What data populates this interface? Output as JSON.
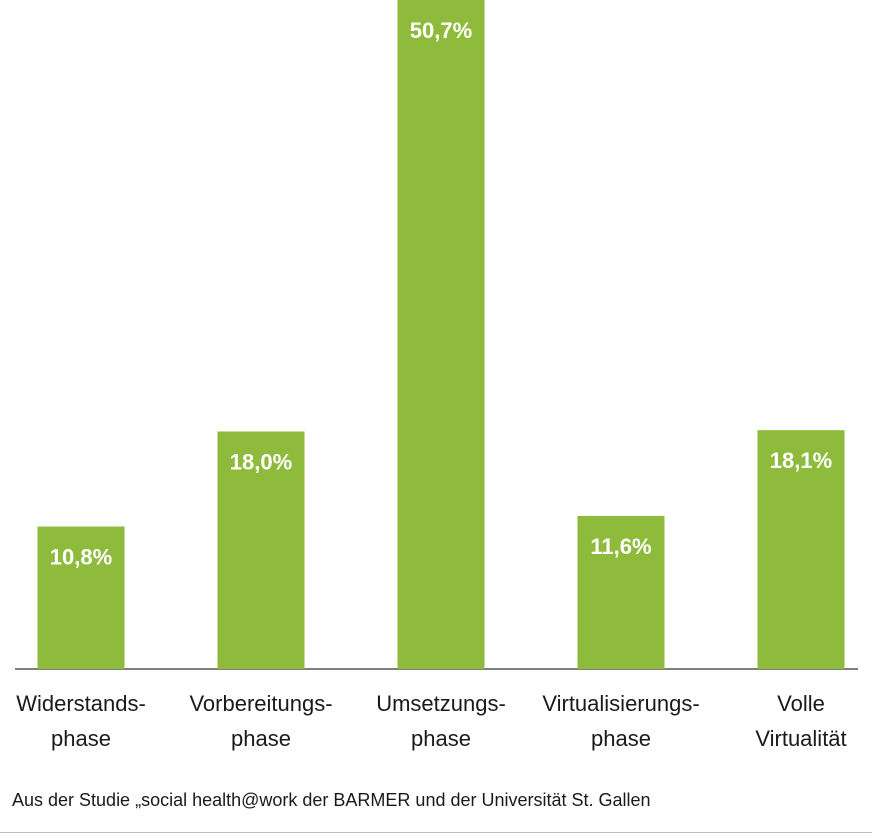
{
  "chart_data": {
    "type": "bar",
    "categories": [
      [
        "Widerstands-",
        "phase"
      ],
      [
        "Vorbereitungs-",
        "phase"
      ],
      [
        "Umsetzungs-",
        "phase"
      ],
      [
        "Virtualisierungs-",
        "phase"
      ],
      [
        "Volle",
        "Virtualität"
      ]
    ],
    "values": [
      10.8,
      18.0,
      50.7,
      11.6,
      18.1
    ],
    "value_labels": [
      "10,8%",
      "18,0%",
      "50,7%",
      "11,6%",
      "18,1%"
    ],
    "ylim": [
      0,
      50.7
    ],
    "bar_color": "#8fbb3c",
    "grid": false
  },
  "source": "Aus der Studie „social health@work der BARMER und der Universität St. Gallen",
  "colors": {
    "bar": "#8fbb3c",
    "axis": "#555555",
    "text": "#1a1a1a"
  }
}
